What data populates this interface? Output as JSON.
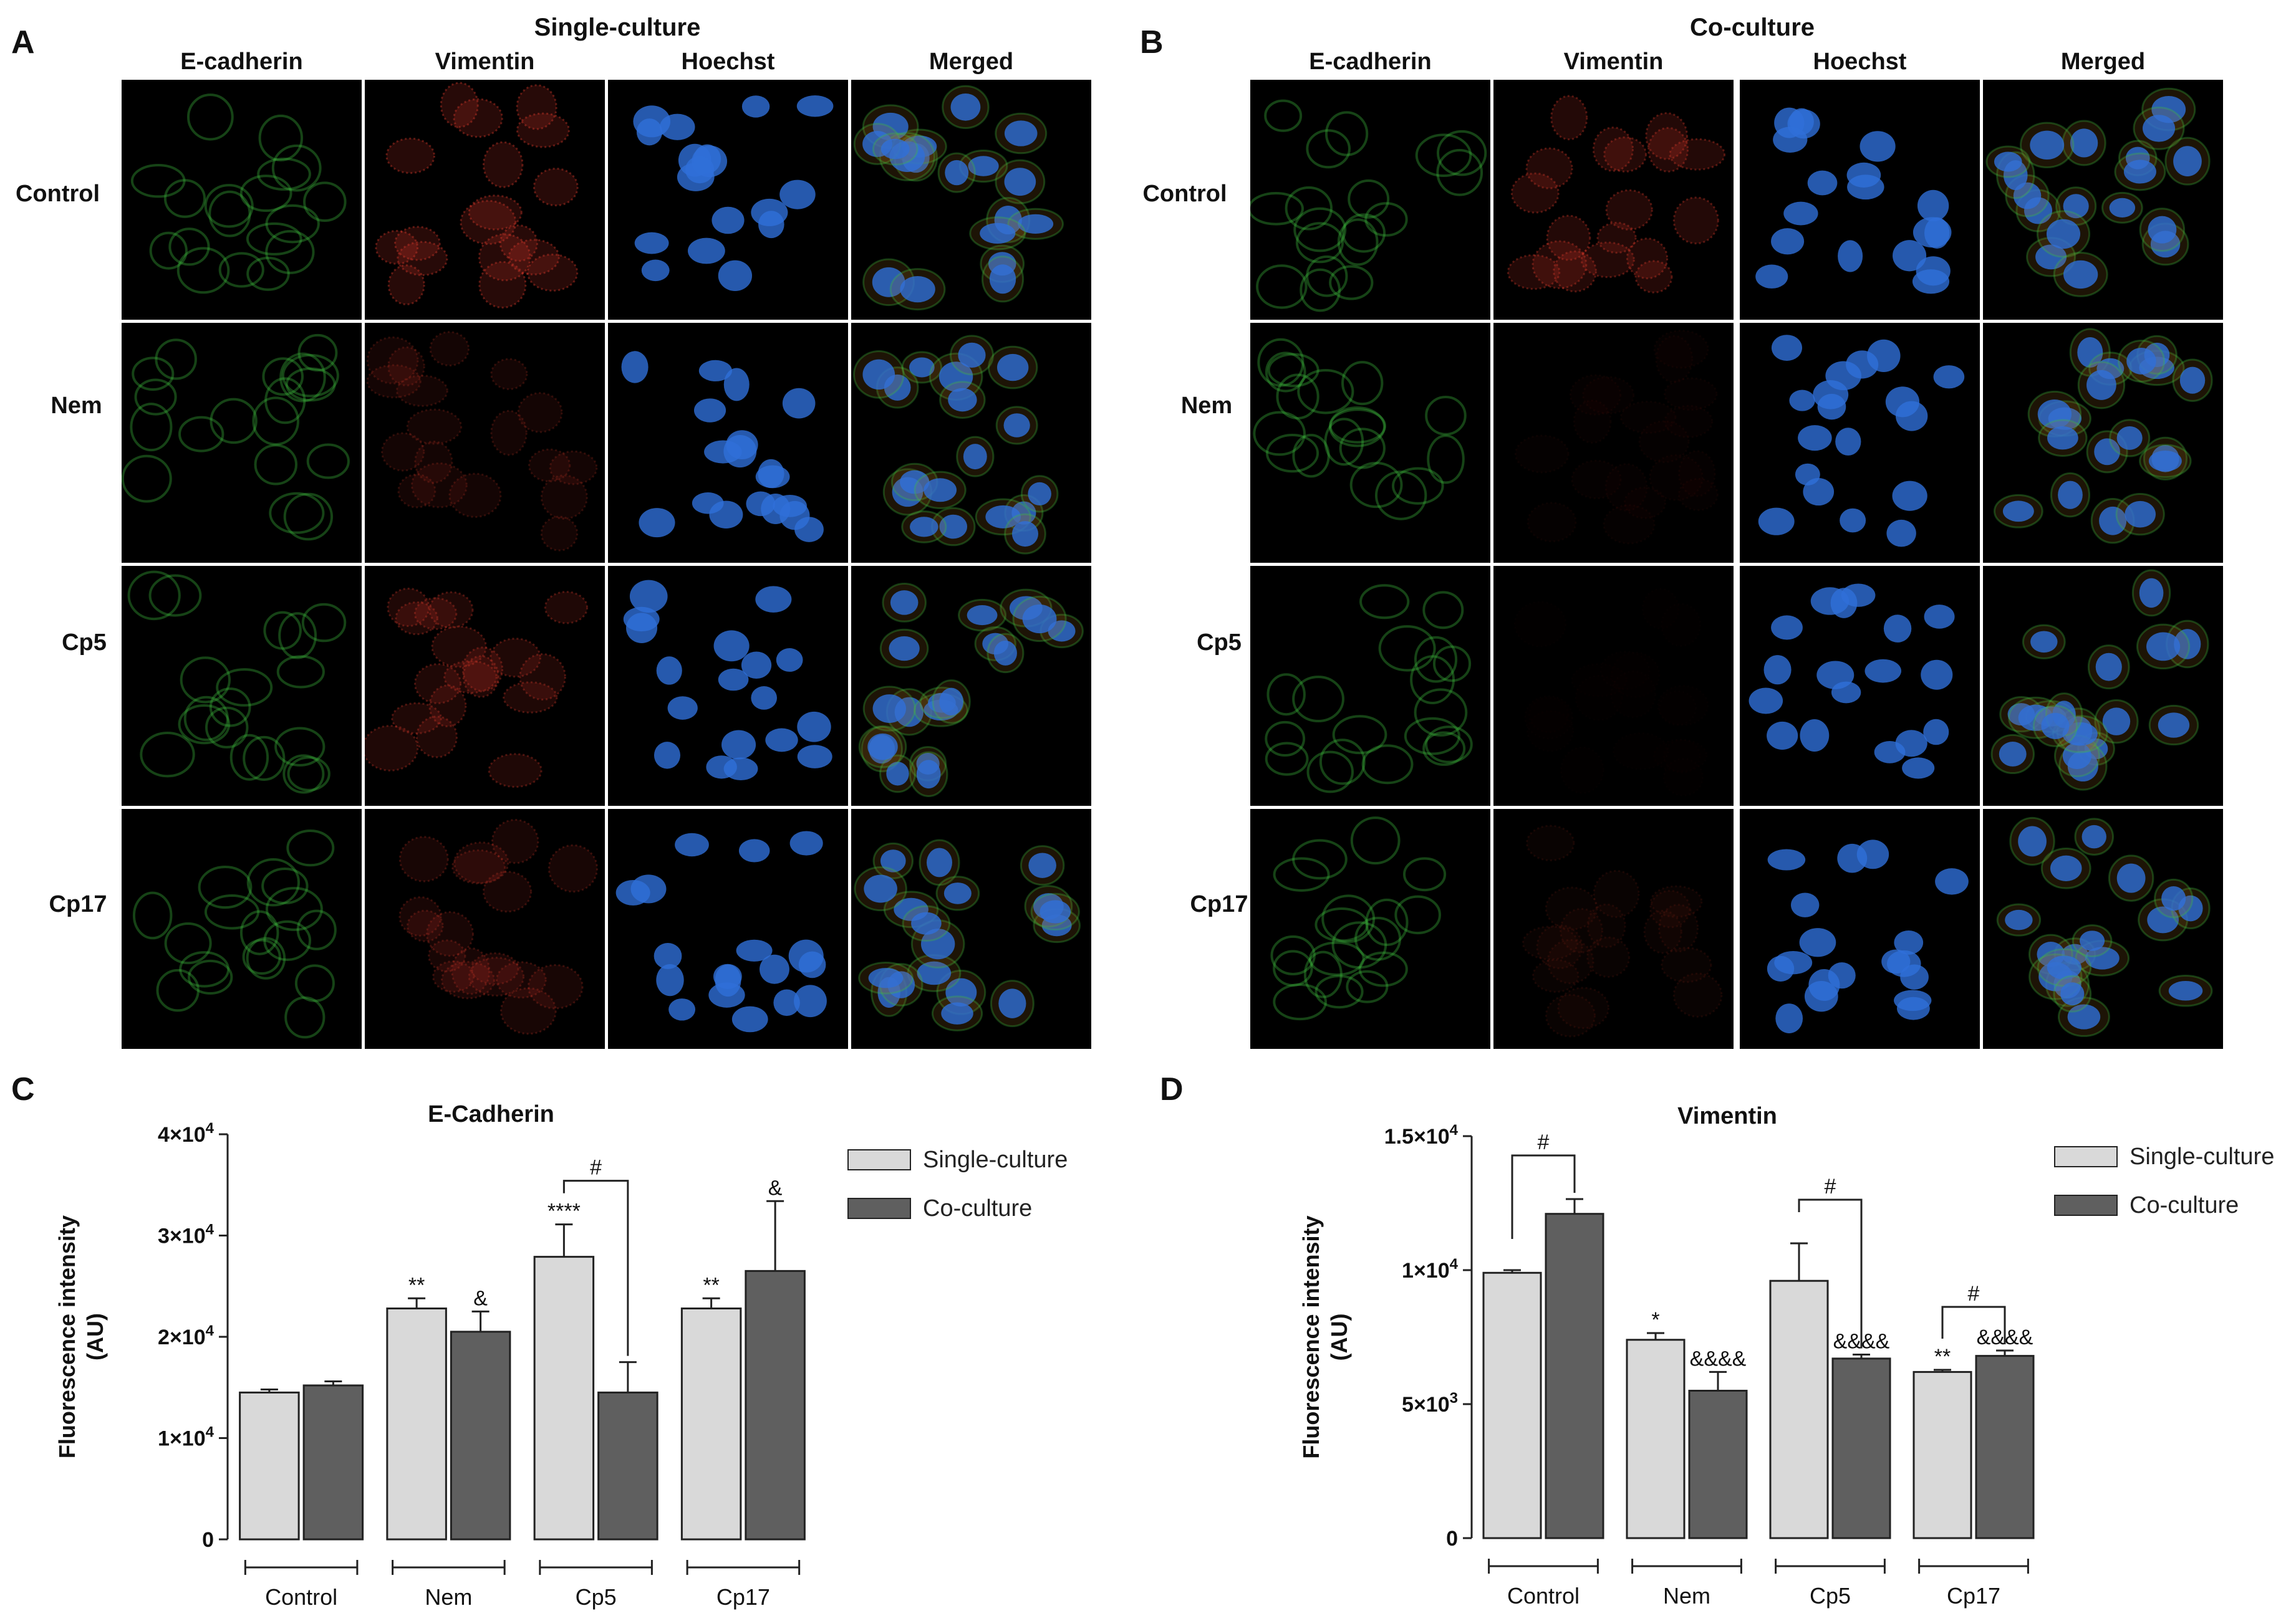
{
  "panels": {
    "A": {
      "letter": "A",
      "title": "Single-culture",
      "columns": [
        "E-cadherin",
        "Vimentin",
        "Hoechst",
        "Merged"
      ],
      "rows": [
        "Control",
        "Nem",
        "Cp5",
        "Cp17"
      ]
    },
    "B": {
      "letter": "B",
      "title": "Co-culture",
      "columns": [
        "E-cadherin",
        "Vimentin",
        "Hoechst",
        "Merged"
      ],
      "rows": [
        "Control",
        "Nem",
        "Cp5",
        "Cp17"
      ]
    },
    "C": {
      "letter": "C"
    },
    "D": {
      "letter": "D"
    }
  },
  "colors": {
    "single": "#d9d9d9",
    "co": "#5f5f5f",
    "ecad": "#3fbf3f",
    "vim": "#d93a2a",
    "hoechst": "#2f6fd8"
  },
  "chart_data": [
    {
      "id": "C",
      "type": "bar",
      "title": "E-Cadherin",
      "ylabel_line1": "Fluorescence intensity",
      "ylabel_line2": "(AU)",
      "categories": [
        "Control",
        "Nem",
        "Cp5",
        "Cp17"
      ],
      "ylim": [
        0,
        40000
      ],
      "yticks": [
        {
          "value": 0,
          "base": "0",
          "exp": ""
        },
        {
          "value": 10000,
          "base": "1×10",
          "exp": "4"
        },
        {
          "value": 20000,
          "base": "2×10",
          "exp": "4"
        },
        {
          "value": 30000,
          "base": "3×10",
          "exp": "4"
        },
        {
          "value": 40000,
          "base": "4×10",
          "exp": "4"
        }
      ],
      "series": [
        {
          "name": "Single-culture",
          "values": [
            14500,
            22800,
            27900,
            22800
          ],
          "errors": [
            300,
            1000,
            3200,
            1000
          ],
          "annotations": [
            "",
            "**",
            "****",
            "**"
          ]
        },
        {
          "name": "Co-culture",
          "values": [
            15200,
            20500,
            14500,
            26500
          ],
          "errors": [
            400,
            2000,
            3000,
            6900
          ],
          "annotations": [
            "",
            "&",
            "",
            "&"
          ]
        }
      ],
      "brackets": [
        {
          "category": 2,
          "label": "#"
        }
      ],
      "legend": "top-right"
    },
    {
      "id": "D",
      "type": "bar",
      "title": "Vimentin",
      "ylabel_line1": "Fluorescence intensity",
      "ylabel_line2": "(AU)",
      "categories": [
        "Control",
        "Nem",
        "Cp5",
        "Cp17"
      ],
      "ylim": [
        0,
        15000
      ],
      "yticks": [
        {
          "value": 0,
          "base": "0",
          "exp": ""
        },
        {
          "value": 5000,
          "base": "5×10",
          "exp": "3"
        },
        {
          "value": 10000,
          "base": "1×10",
          "exp": "4"
        },
        {
          "value": 15000,
          "base": "1.5×10",
          "exp": "4"
        }
      ],
      "series": [
        {
          "name": "Single-culture",
          "values": [
            9900,
            7400,
            9600,
            6200
          ],
          "errors": [
            100,
            250,
            1400,
            80
          ],
          "annotations": [
            "",
            "*",
            "",
            "**"
          ]
        },
        {
          "name": "Co-culture",
          "values": [
            12100,
            5500,
            6700,
            6800
          ],
          "errors": [
            550,
            700,
            150,
            200
          ],
          "annotations": [
            "",
            "&&&&",
            "&&&&",
            "&&&&"
          ]
        }
      ],
      "brackets": [
        {
          "category": 0,
          "label": "#"
        },
        {
          "category": 2,
          "label": "#"
        },
        {
          "category": 3,
          "label": "#"
        }
      ],
      "legend": "top-right"
    }
  ]
}
